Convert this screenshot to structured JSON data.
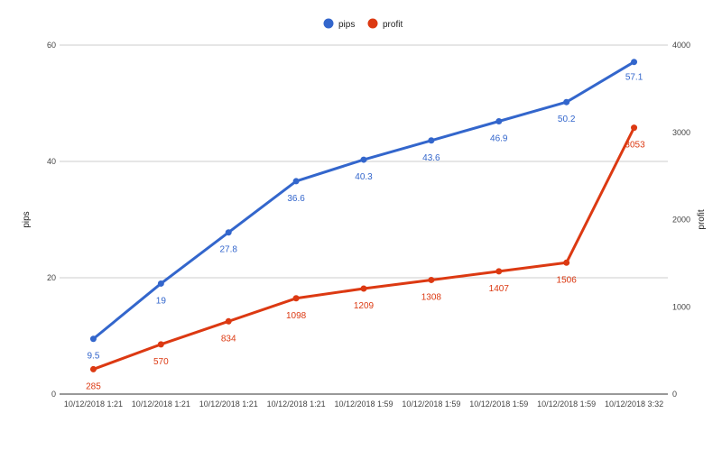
{
  "chart_data": {
    "type": "line",
    "categories": [
      "10/12/2018 1:21",
      "10/12/2018 1:21",
      "10/12/2018 1:21",
      "10/12/2018 1:21",
      "10/12/2018 1:59",
      "10/12/2018 1:59",
      "10/12/2018 1:59",
      "10/12/2018 1:59",
      "10/12/2018 3:32"
    ],
    "series": [
      {
        "name": "pips",
        "axis": "left",
        "color": "#3366cc",
        "values": [
          9.5,
          19,
          27.8,
          36.6,
          40.3,
          43.6,
          46.9,
          50.2,
          57.1
        ],
        "labels": [
          "9.5",
          "19",
          "27.8",
          "36.6",
          "40.3",
          "43.6",
          "46.9",
          "50.2",
          "57.1"
        ]
      },
      {
        "name": "profit",
        "axis": "right",
        "color": "#dc3912",
        "values": [
          285,
          570,
          834,
          1098,
          1209,
          1308,
          1407,
          1506,
          3053
        ],
        "labels": [
          "285",
          "570",
          "834",
          "1098",
          "1209",
          "1308",
          "1407",
          "1506",
          "3053"
        ]
      }
    ],
    "ylabel_left": "pips",
    "ylabel_right": "profit",
    "ylim_left": [
      0,
      60
    ],
    "ylim_right": [
      0,
      4000
    ],
    "yticks_left": [
      "0",
      "20",
      "40",
      "60"
    ],
    "yticks_right": [
      "0",
      "1000",
      "2000",
      "3000",
      "4000"
    ],
    "grid": true,
    "legend_position": "top-center"
  }
}
